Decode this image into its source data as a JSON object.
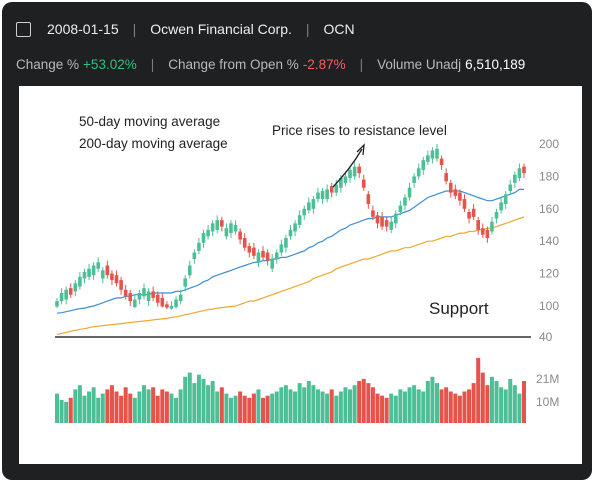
{
  "header": {
    "date": "2008-01-15",
    "company": "Ocwen Financial Corp.",
    "ticker": "OCN"
  },
  "stats": {
    "change_label": "Change %",
    "change_value": "+53.02%",
    "from_open_label": "Change from Open %",
    "from_open_value": "-2.87%",
    "volume_label": "Volume Unadj",
    "volume_value": "6,510,189"
  },
  "colors": {
    "up": "#4cbf97",
    "down": "#e5534b",
    "ma50": "#3b8fd6",
    "ma200": "#f0a830",
    "support": "#333333"
  },
  "chart_data": {
    "type": "candlestick",
    "legend": [
      "50-day moving average",
      "200-day moving average"
    ],
    "annotations": [
      "Price rises to resistance level",
      "Support"
    ],
    "price_ticks": [
      200,
      180,
      160,
      140,
      120,
      100,
      40
    ],
    "volume_ticks": [
      "21M",
      "10M"
    ],
    "support_level": 40,
    "closes": [
      103,
      108,
      110,
      107,
      114,
      118,
      121,
      123,
      125,
      127,
      122,
      119,
      116,
      114,
      110,
      106,
      103,
      104,
      108,
      111,
      109,
      105,
      102,
      99,
      97,
      100,
      104,
      107,
      117,
      125,
      133,
      139,
      145,
      147,
      151,
      153,
      149,
      148,
      151,
      150,
      141,
      136,
      133,
      131,
      133,
      130,
      128,
      129,
      133,
      138,
      142,
      147,
      151,
      156,
      160,
      164,
      166,
      170,
      171,
      172,
      170,
      175,
      179,
      180,
      184,
      186,
      182,
      173,
      163,
      155,
      151,
      149,
      149,
      152,
      157,
      162,
      167,
      173,
      180,
      185,
      190,
      193,
      196,
      197,
      187,
      177,
      170,
      168,
      165,
      160,
      154,
      155,
      147,
      144,
      142,
      152,
      158,
      164,
      169,
      175,
      181,
      185,
      182
    ],
    "ma50": [
      86,
      87,
      89,
      91,
      93,
      95,
      96,
      98,
      100,
      101,
      102,
      103,
      104,
      105,
      105,
      106,
      106,
      107,
      107,
      107,
      107,
      108,
      108,
      108,
      108,
      108,
      109,
      109,
      110,
      111,
      112,
      113,
      115,
      116,
      118,
      119,
      120,
      121,
      122,
      123,
      124,
      125,
      126,
      127,
      127,
      128,
      128,
      129,
      129,
      130,
      130,
      131,
      132,
      133,
      134,
      136,
      137,
      139,
      140,
      142,
      143,
      145,
      147,
      148,
      150,
      151,
      152,
      153,
      154,
      154,
      155,
      155,
      155,
      155,
      156,
      157,
      158,
      159,
      161,
      163,
      165,
      167,
      168,
      169,
      170,
      171,
      171,
      171,
      171,
      170,
      169,
      168,
      167,
      166,
      165,
      165,
      166,
      167,
      168,
      169,
      170,
      172,
      172
    ],
    "ma200": [
      45,
      47,
      49,
      51,
      53,
      55,
      56,
      58,
      60,
      61,
      62,
      63,
      64,
      65,
      66,
      67,
      68,
      69,
      70,
      71,
      72,
      73,
      74,
      75,
      76,
      78,
      79,
      81,
      83,
      85,
      87,
      89,
      91,
      93,
      94,
      96,
      97,
      98,
      99,
      100,
      101,
      102,
      103,
      103,
      104,
      105,
      106,
      107,
      108,
      109,
      110,
      111,
      112,
      113,
      114,
      115,
      117,
      118,
      119,
      120,
      121,
      123,
      124,
      125,
      126,
      127,
      128,
      129,
      129,
      130,
      131,
      132,
      133,
      134,
      134,
      135,
      136,
      136,
      137,
      138,
      139,
      140,
      140,
      141,
      142,
      143,
      143,
      144,
      145,
      145,
      146,
      146,
      147,
      147,
      148,
      148,
      149,
      150,
      151,
      152,
      153,
      154,
      155
    ],
    "volume_millions": [
      14,
      11,
      10,
      12,
      16,
      18,
      13,
      15,
      17,
      12,
      14,
      16,
      18,
      15,
      13,
      17,
      14,
      12,
      15,
      18,
      16,
      17,
      13,
      16,
      15,
      14,
      12,
      16,
      22,
      24,
      19,
      23,
      21,
      18,
      20,
      15,
      17,
      14,
      12,
      13,
      15,
      13,
      12,
      14,
      16,
      12,
      13,
      14,
      15,
      17,
      18,
      16,
      15,
      19,
      17,
      20,
      18,
      16,
      15,
      14,
      16,
      13,
      15,
      17,
      16,
      18,
      20,
      21,
      19,
      17,
      14,
      13,
      12,
      14,
      13,
      16,
      15,
      17,
      18,
      16,
      15,
      20,
      22,
      19,
      16,
      17,
      15,
      14,
      13,
      15,
      16,
      19,
      31,
      24,
      18,
      22,
      20,
      17,
      16,
      21,
      18,
      14,
      20
    ],
    "down_indices": [
      3,
      11,
      12,
      13,
      14,
      15,
      16,
      21,
      22,
      23,
      24,
      36,
      40,
      41,
      42,
      43,
      45,
      46,
      60,
      66,
      67,
      68,
      69,
      70,
      71,
      72,
      84,
      85,
      86,
      87,
      88,
      89,
      90,
      91,
      92,
      93,
      94,
      102
    ]
  }
}
